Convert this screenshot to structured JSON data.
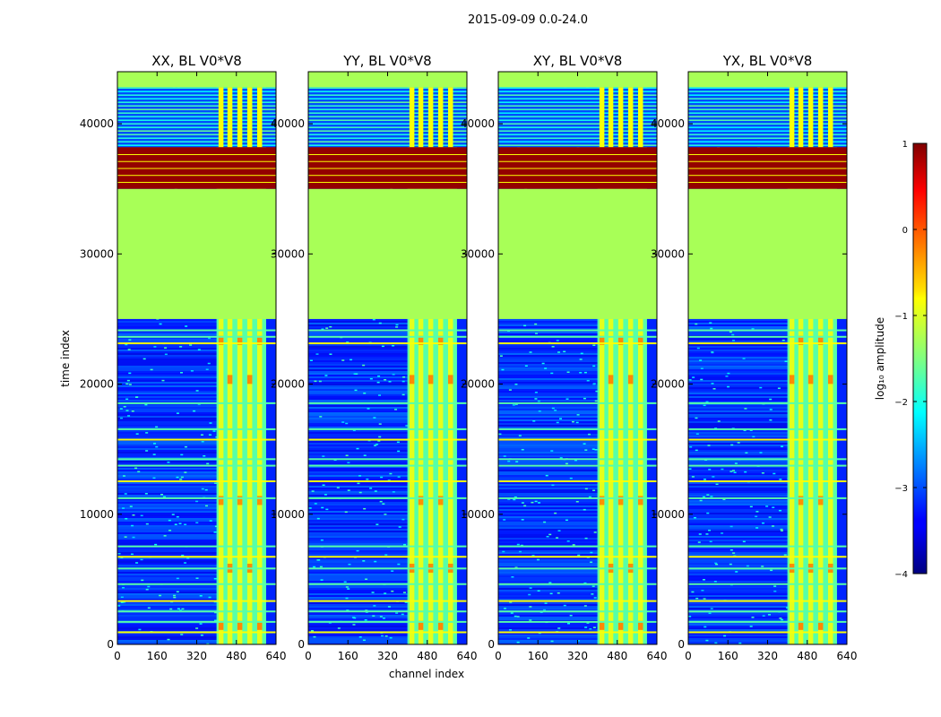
{
  "figure": {
    "suptitle": "2015-09-09 0.0-24.0"
  },
  "chart_data": {
    "type": "heatmap",
    "title": "2015-09-09 0.0-24.0",
    "xlabel": "channel index",
    "ylabel": "time index",
    "xlim": [
      0,
      640
    ],
    "ylim": [
      0,
      44000
    ],
    "x_ticks": [
      0,
      160,
      320,
      480,
      640
    ],
    "y_ticks": [
      0,
      10000,
      20000,
      30000,
      40000
    ],
    "panels": [
      {
        "title": "XX, BL V0*V8"
      },
      {
        "title": "YY, BL V0*V8"
      },
      {
        "title": "XY, BL V0*V8"
      },
      {
        "title": "YX, BL V0*V8"
      }
    ],
    "colorbar": {
      "label": "log₁₀ amplitude",
      "range": [
        -4,
        1
      ],
      "ticks": [
        1,
        0,
        -1,
        -2,
        -3,
        -4
      ],
      "tick_labels": [
        "1",
        "0",
        "−1",
        "−2",
        "−3",
        "−4"
      ],
      "colormap": "jet"
    },
    "regions": {
      "flagged_constant_value": -1.3,
      "flagged_time_ranges": [
        [
          25000,
          35000
        ],
        [
          42800,
          44000
        ]
      ],
      "saturated_value": 0.9,
      "saturated_time_range": [
        35000,
        38200
      ],
      "active_channel_range": [
        400,
        600
      ],
      "background_value_range": [
        -3.6,
        -2.6
      ]
    }
  }
}
